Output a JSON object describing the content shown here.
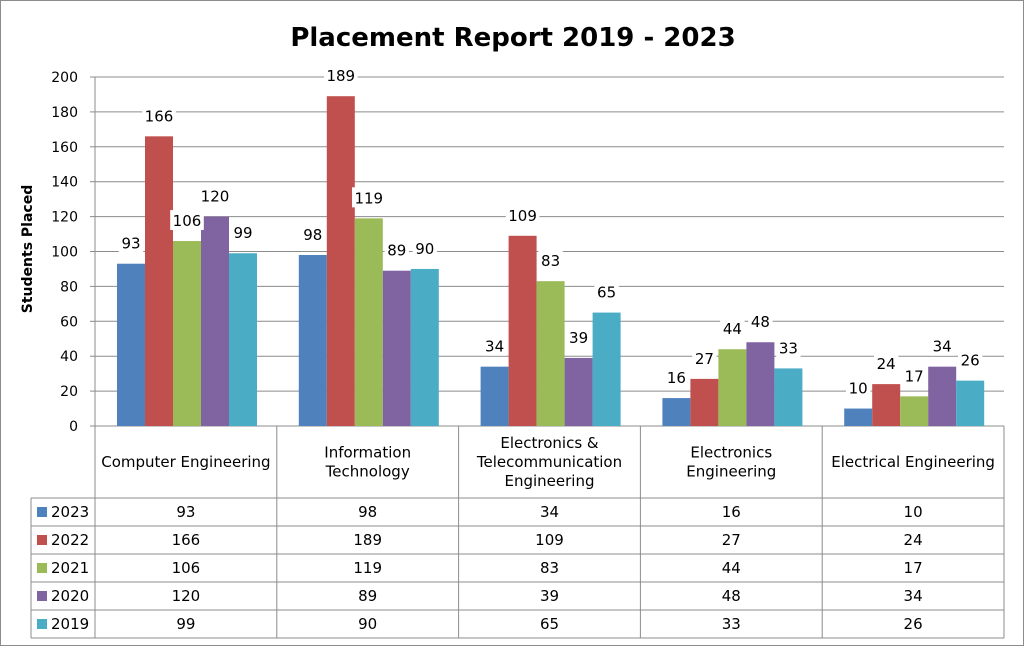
{
  "chart_data": {
    "type": "bar",
    "title": "Placement Report 2019 - 2023",
    "xlabel": "",
    "ylabel": "Students Placed",
    "ylim": [
      0,
      200
    ],
    "yticks": [
      0,
      20,
      40,
      60,
      80,
      100,
      120,
      140,
      160,
      180,
      200
    ],
    "grid": true,
    "legend": "data-table",
    "categories": [
      [
        "Computer Engineering"
      ],
      [
        "Information",
        "Technology"
      ],
      [
        "Electronics &",
        "Telecommunication",
        "Engineering"
      ],
      [
        "Electronics",
        "Engineering"
      ],
      [
        "Electrical Engineering"
      ]
    ],
    "series": [
      {
        "name": "2023",
        "color": "#4F81BD",
        "values": [
          93,
          98,
          34,
          16,
          10
        ]
      },
      {
        "name": "2022",
        "color": "#C0504D",
        "values": [
          166,
          189,
          109,
          27,
          24
        ]
      },
      {
        "name": "2021",
        "color": "#9BBB59",
        "values": [
          106,
          119,
          83,
          44,
          17
        ]
      },
      {
        "name": "2020",
        "color": "#8064A2",
        "values": [
          120,
          89,
          39,
          48,
          34
        ]
      },
      {
        "name": "2019",
        "color": "#4BACC6",
        "values": [
          99,
          90,
          65,
          33,
          26
        ]
      }
    ]
  }
}
